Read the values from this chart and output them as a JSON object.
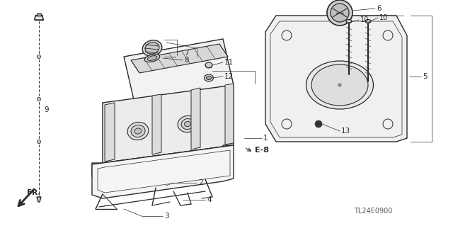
{
  "bg_color": "#ffffff",
  "line_color": "#2a2a2a",
  "lw_main": 1.0,
  "lw_thin": 0.5,
  "fig_width": 6.4,
  "fig_height": 3.19,
  "dpi": 100,
  "diagram_code": "TL24E0900"
}
